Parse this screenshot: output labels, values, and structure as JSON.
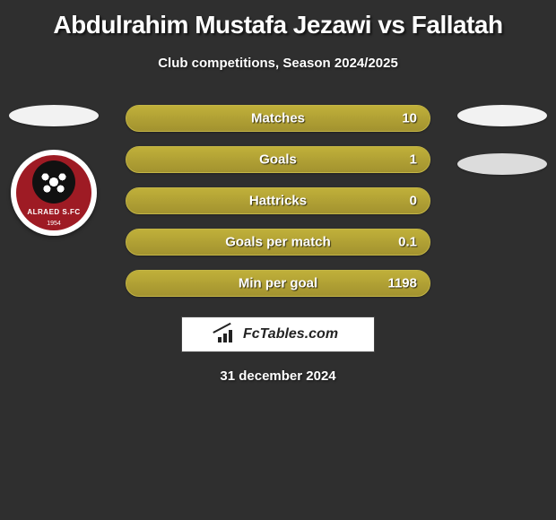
{
  "title": "Abdulrahim Mustafa Jezawi vs Fallatah",
  "subtitle": "Club competitions, Season 2024/2025",
  "date_text": "31 december 2024",
  "brand": "FcTables.com",
  "colors": {
    "background": "#2f2f2f",
    "bar_fill": "#a2922f",
    "bar_border": "#c4b646",
    "ellipse": "#f2f2f2",
    "ellipse_shaded": "#dcdcdc",
    "text": "#ffffff",
    "badge_red": "#9e1b24"
  },
  "left_badge": {
    "text": "ALRAED S.FC",
    "year": "1954"
  },
  "bars": [
    {
      "label": "Matches",
      "value_right": "10",
      "fill_pct": 100
    },
    {
      "label": "Goals",
      "value_right": "1",
      "fill_pct": 100
    },
    {
      "label": "Hattricks",
      "value_right": "0",
      "fill_pct": 100
    },
    {
      "label": "Goals per match",
      "value_right": "0.1",
      "fill_pct": 100
    },
    {
      "label": "Min per goal",
      "value_right": "1198",
      "fill_pct": 100
    }
  ]
}
